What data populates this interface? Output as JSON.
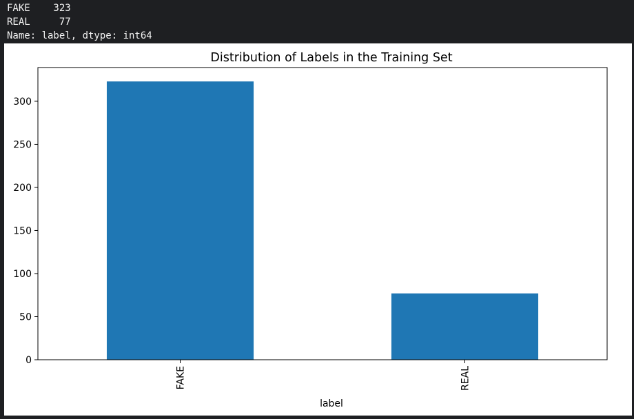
{
  "console": {
    "lines": [
      "FAKE    323",
      "REAL     77",
      "Name: label, dtype: int64"
    ]
  },
  "colors": {
    "bar": "#1f77b4",
    "console_bg": "#1e1f22",
    "console_text": "#f2f2f2"
  },
  "chart_data": {
    "type": "bar",
    "title": "Distribution of Labels in the Training Set",
    "xlabel": "label",
    "ylabel": "",
    "categories": [
      "FAKE",
      "REAL"
    ],
    "values": [
      323,
      77
    ],
    "ylim": [
      0,
      339.15
    ],
    "yticks": [
      0,
      50,
      100,
      150,
      200,
      250,
      300
    ],
    "ytick_labels": [
      "0",
      "50",
      "100",
      "150",
      "200",
      "250",
      "300"
    ],
    "grid": false,
    "xtick_rotation": 90
  }
}
